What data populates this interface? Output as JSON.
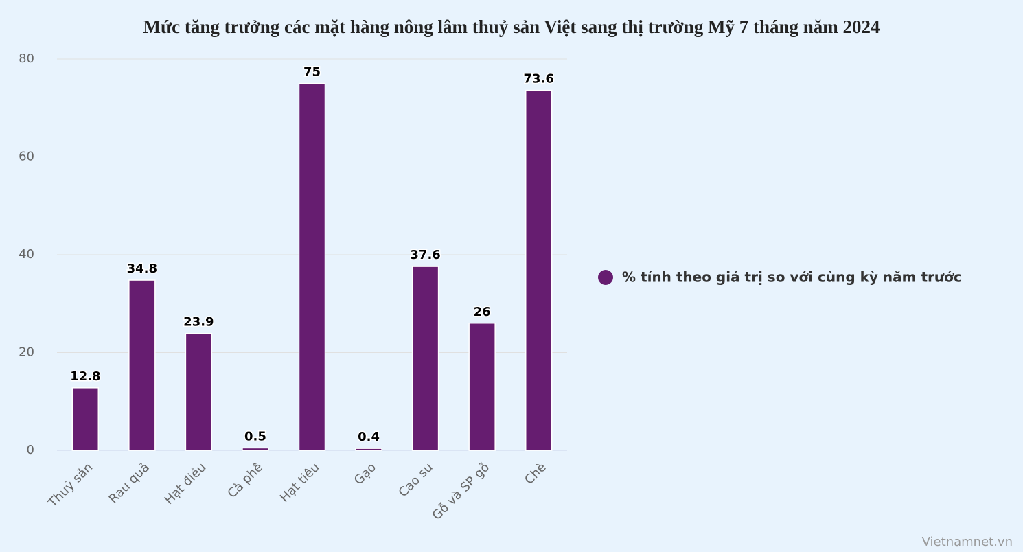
{
  "chart_data": {
    "type": "bar",
    "title": "Mức tăng trưởng các mặt hàng nông lâm thuỷ sản Việt sang thị trường Mỹ 7 tháng năm 2024",
    "categories": [
      "Thuỷ sản",
      "Rau quả",
      "Hạt điều",
      "Cà phê",
      "Hạt tiêu",
      "Gạo",
      "Cao su",
      "Gỗ và SP gỗ",
      "Chè"
    ],
    "series": [
      {
        "name": "% tính theo giá trị so với cùng kỳ năm trước",
        "color": "#661d70",
        "values": [
          12.8,
          34.8,
          23.9,
          0.5,
          75,
          0.4,
          37.6,
          26,
          73.6
        ]
      }
    ],
    "ylim": [
      0,
      80
    ],
    "yticks": [
      0,
      20,
      40,
      60,
      80
    ],
    "grid": true,
    "legend": "right",
    "credit": "Vietnamnet.vn"
  }
}
